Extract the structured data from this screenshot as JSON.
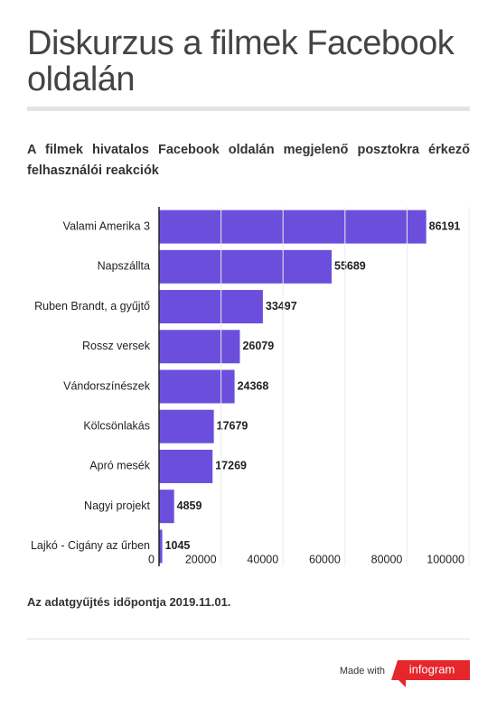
{
  "chart_data": {
    "type": "bar",
    "orientation": "horizontal",
    "title": "Diskurzus a filmek Facebook oldalán",
    "subtitle": "A filmek hivatalos Facebook oldalán megjelenő posztokra érkező felhasználói reakciók",
    "categories": [
      "Valami Amerika 3",
      "Napszállta",
      "Ruben Brandt, a gyűjtő",
      "Rossz versek",
      "Vándorszínészek",
      "Kölcsönlakás",
      "Apró mesék",
      "Nagyi projekt",
      "Lajkó - Cigány az űrben"
    ],
    "values": [
      86191,
      55689,
      33497,
      26079,
      24368,
      17679,
      17269,
      4859,
      1045
    ],
    "color": "#6b4fdc",
    "xlim": [
      0,
      100000
    ],
    "xticks": [
      0,
      20000,
      40000,
      60000,
      80000,
      100000
    ],
    "grid": true,
    "note": "Az adatgyűjtés időpontja 2019.11.01."
  },
  "footer": {
    "made_with": "Made with",
    "brand": "infogram"
  }
}
